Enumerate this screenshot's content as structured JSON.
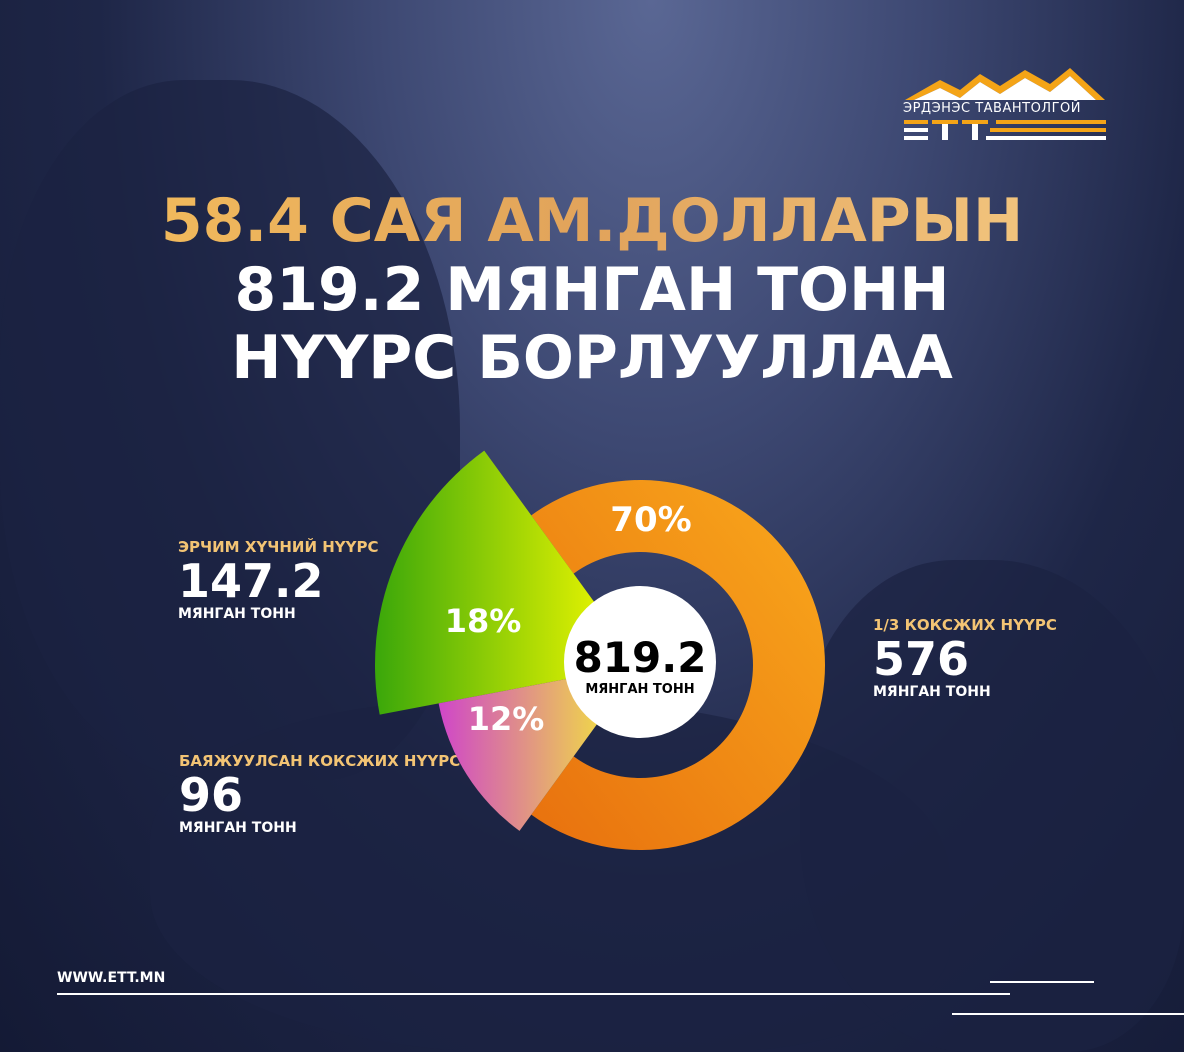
{
  "logo": {
    "name": "ЭРДЭНЭС ТАВАНТОЛГОЙ",
    "abbr": "ЕТТ",
    "colors": [
      "#f4a417",
      "#ffffff"
    ]
  },
  "headline": {
    "line1": "58.4 САЯ АМ.ДОЛЛАРЫН",
    "line2": "819.2 МЯНГАН ТОНН",
    "line3": "НҮҮРС БОРЛУУЛЛАА"
  },
  "chart_data": {
    "type": "pie",
    "center": {
      "value": "819.2",
      "unit": "МЯНГАН ТОНН"
    },
    "slices": [
      {
        "name": "1/3 КОКСЖИХ НҮҮРС",
        "value": 576,
        "unit": "МЯНГАН ТОНН",
        "percent": 70,
        "percent_label": "70%",
        "colors": [
          "#e8700e",
          "#f9a91c"
        ]
      },
      {
        "name": "ЭРЧИМ ХҮЧНИЙ НҮҮРС",
        "value": 147.2,
        "unit": "МЯНГАН ТОНН",
        "percent": 18,
        "percent_label": "18%",
        "colors": [
          "#3aa70a",
          "#ffff00"
        ]
      },
      {
        "name": "БАЯЖУУЛСАН КОКСЖИХ НҮҮРС",
        "value": 96,
        "unit": "МЯНГАН ТОНН",
        "percent": 12,
        "percent_label": "12%",
        "colors": [
          "#cf46c9",
          "#f7f92c"
        ]
      }
    ]
  },
  "footer": {
    "website": "WWW.ETT.MN"
  }
}
